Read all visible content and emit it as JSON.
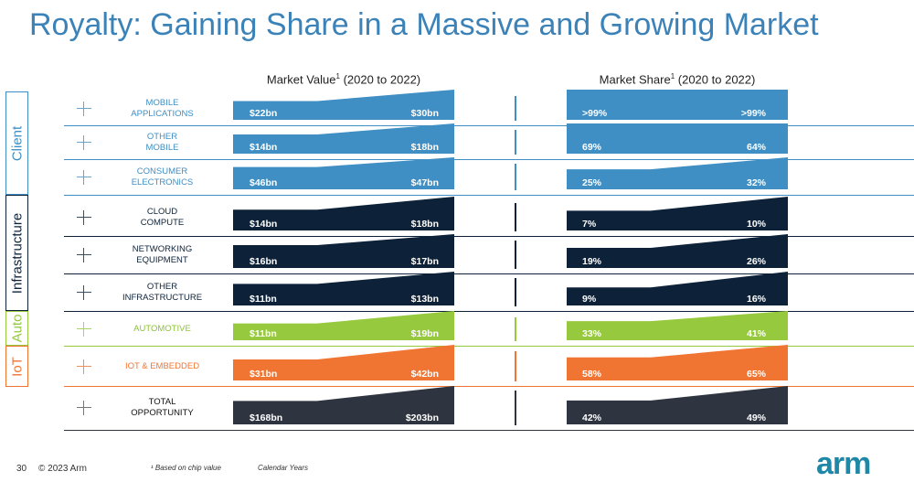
{
  "title": "Royalty: Gaining Share in a Massive and Growing Market",
  "columns": {
    "market_value": {
      "label": "Market Value",
      "sup": "1",
      "suffix": " (2020 to 2022)"
    },
    "market_share": {
      "label": "Market Share",
      "sup": "1",
      "suffix": " (2020 to 2022)"
    }
  },
  "segments": [
    {
      "label": "Client",
      "color": "#3f8fc4"
    },
    {
      "label": "Infrastructure",
      "color": "#0d2239"
    },
    {
      "label": "Auto",
      "color": "#96c93d"
    },
    {
      "label": "IoT",
      "color": "#f07533"
    }
  ],
  "rows": [
    {
      "label_lines": [
        "Mobile",
        "Applications"
      ],
      "color": "#3f8fc4",
      "label_color": "#3f8fc4",
      "value_start": "$22bn",
      "value_end": "$30bn",
      "value_2020": 22,
      "value_2022": 30,
      "share_start": ">99%",
      "share_end": ">99%",
      "share_2020": 99,
      "share_2022": 99
    },
    {
      "label_lines": [
        "Other",
        "Mobile"
      ],
      "color": "#3f8fc4",
      "label_color": "#3f8fc4",
      "value_start": "$14bn",
      "value_end": "$18bn",
      "value_2020": 14,
      "value_2022": 18,
      "share_start": "69%",
      "share_end": "64%",
      "share_2020": 69,
      "share_2022": 64
    },
    {
      "label_lines": [
        "Consumer",
        "Electronics"
      ],
      "color": "#3f8fc4",
      "label_color": "#3f8fc4",
      "value_start": "$46bn",
      "value_end": "$47bn",
      "value_2020": 46,
      "value_2022": 47,
      "share_start": "25%",
      "share_end": "32%",
      "share_2020": 25,
      "share_2022": 32
    },
    {
      "label_lines": [
        "Cloud",
        "Compute"
      ],
      "color": "#0d2239",
      "label_color": "#0d2239",
      "value_start": "$14bn",
      "value_end": "$18bn",
      "value_2020": 14,
      "value_2022": 18,
      "share_start": "7%",
      "share_end": "10%",
      "share_2020": 7,
      "share_2022": 10
    },
    {
      "label_lines": [
        "Networking",
        "Equipment"
      ],
      "color": "#0d2239",
      "label_color": "#0d2239",
      "value_start": "$16bn",
      "value_end": "$17bn",
      "value_2020": 16,
      "value_2022": 17,
      "share_start": "19%",
      "share_end": "26%",
      "share_2020": 19,
      "share_2022": 26
    },
    {
      "label_lines": [
        "Other",
        "Infrastructure"
      ],
      "color": "#0d2239",
      "label_color": "#0d2239",
      "value_start": "$11bn",
      "value_end": "$13bn",
      "value_2020": 11,
      "value_2022": 13,
      "share_start": "9%",
      "share_end": "16%",
      "share_2020": 9,
      "share_2022": 16
    },
    {
      "label_lines": [
        "Automotive"
      ],
      "color": "#96c93d",
      "label_color": "#8dc23a",
      "value_start": "$11bn",
      "value_end": "$19bn",
      "value_2020": 11,
      "value_2022": 19,
      "share_start": "33%",
      "share_end": "41%",
      "share_2020": 33,
      "share_2022": 41
    },
    {
      "label_lines": [
        "IoT & Embedded"
      ],
      "color": "#f07533",
      "label_color": "#f07533",
      "value_start": "$31bn",
      "value_end": "$42bn",
      "value_2020": 31,
      "value_2022": 42,
      "share_start": "58%",
      "share_end": "65%",
      "share_2020": 58,
      "share_2022": 65
    },
    {
      "label_lines": [
        "Total",
        "Opportunity"
      ],
      "color": "#2e3540",
      "label_color": "#111111",
      "value_start": "$168bn",
      "value_end": "$203bn",
      "value_2020": 168,
      "value_2022": 203,
      "share_start": "42%",
      "share_end": "49%",
      "share_2020": 42,
      "share_2022": 49
    }
  ],
  "footer": {
    "page": "30",
    "copyright": "© 2023 Arm",
    "footnote": "¹ Based on chip value",
    "calendar": "Calendar Years"
  },
  "logo": "arm"
}
